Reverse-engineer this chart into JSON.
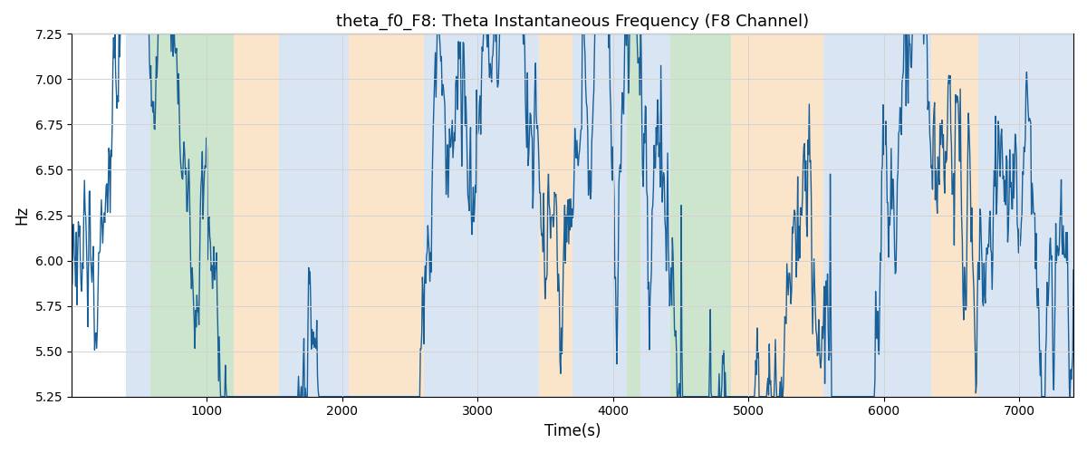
{
  "title": "theta_f0_F8: Theta Instantaneous Frequency (F8 Channel)",
  "xlabel": "Time(s)",
  "ylabel": "Hz",
  "ylim": [
    5.25,
    7.25
  ],
  "xlim": [
    0,
    7400
  ],
  "bg_regions": [
    {
      "xstart": 400,
      "xend": 580,
      "color": "#adc6e8",
      "alpha": 0.45
    },
    {
      "xstart": 580,
      "xend": 1200,
      "color": "#90c490",
      "alpha": 0.45
    },
    {
      "xstart": 1200,
      "xend": 1530,
      "color": "#f5c48a",
      "alpha": 0.45
    },
    {
      "xstart": 1530,
      "xend": 2050,
      "color": "#adc6e8",
      "alpha": 0.45
    },
    {
      "xstart": 2050,
      "xend": 2600,
      "color": "#f5c48a",
      "alpha": 0.45
    },
    {
      "xstart": 2600,
      "xend": 3450,
      "color": "#adc6e8",
      "alpha": 0.45
    },
    {
      "xstart": 3450,
      "xend": 3700,
      "color": "#f5c48a",
      "alpha": 0.45
    },
    {
      "xstart": 3700,
      "xend": 4100,
      "color": "#adc6e8",
      "alpha": 0.45
    },
    {
      "xstart": 4100,
      "xend": 4200,
      "color": "#90c490",
      "alpha": 0.45
    },
    {
      "xstart": 4200,
      "xend": 4420,
      "color": "#adc6e8",
      "alpha": 0.45
    },
    {
      "xstart": 4420,
      "xend": 4870,
      "color": "#90c490",
      "alpha": 0.45
    },
    {
      "xstart": 4870,
      "xend": 5550,
      "color": "#f5c48a",
      "alpha": 0.45
    },
    {
      "xstart": 5550,
      "xend": 6350,
      "color": "#adc6e8",
      "alpha": 0.45
    },
    {
      "xstart": 6350,
      "xend": 6700,
      "color": "#f5c48a",
      "alpha": 0.45
    },
    {
      "xstart": 6700,
      "xend": 7400,
      "color": "#adc6e8",
      "alpha": 0.45
    }
  ],
  "line_color": "#1a6098",
  "line_width": 1.0,
  "seed": 999,
  "n_points": 1480,
  "t_start": 0,
  "t_end": 7400,
  "base_freq": 5.95,
  "noise_scale": 0.19
}
